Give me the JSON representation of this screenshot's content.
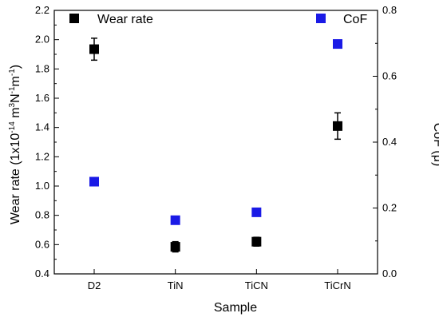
{
  "chart_data": {
    "type": "scatter",
    "categories": [
      "D2",
      "TiN",
      "TiCN",
      "TiCrN"
    ],
    "xlabel": "Sample",
    "ylabel_left": {
      "prefix": "Wear rate (1x10",
      "exp1": "-14",
      "mid1": " m",
      "exp2": "3",
      "mid2": "N",
      "exp3": "-1",
      "mid3": "m",
      "exp4": "-1",
      "suffix": ")"
    },
    "ylabel_right": "CoF (μ)",
    "ylim_left": [
      0.4,
      2.2
    ],
    "ylim_right": [
      0.0,
      0.8
    ],
    "yticks_left": [
      "0.4",
      "0.6",
      "0.8",
      "1.0",
      "1.2",
      "1.4",
      "1.6",
      "1.8",
      "2.0",
      "2.2"
    ],
    "yticks_right": [
      "0.0",
      "0.2",
      "0.4",
      "0.6",
      "0.8"
    ],
    "legend_placement": "top-left and top-right",
    "grid": false,
    "series": [
      {
        "name": "Wear rate",
        "axis": "left",
        "color": "#000000",
        "values": [
          1.935,
          0.585,
          0.62,
          1.41
        ],
        "errors": [
          0.075,
          0.035,
          0.03,
          0.09
        ]
      },
      {
        "name": "CoF",
        "axis": "right",
        "color": "#1a1ae6",
        "values": [
          0.28,
          0.163,
          0.187,
          0.698
        ],
        "errors": [
          0.012,
          0.01,
          0.008,
          0.008
        ]
      }
    ]
  }
}
